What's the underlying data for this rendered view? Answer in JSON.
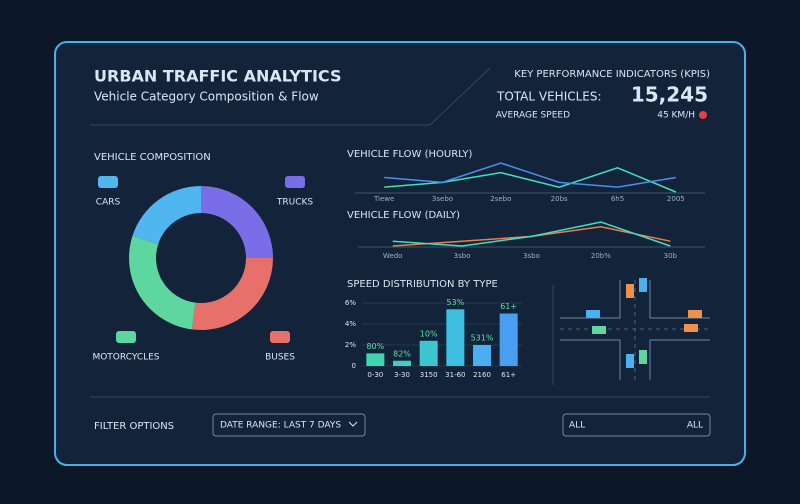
{
  "header": {
    "title": "URBAN TRAFFIC ANALYTICS",
    "subtitle": "Vehicle Category Composition & Flow"
  },
  "kpis": {
    "title": "KEY PERFORMANCE INDICATORS (KPIS)",
    "total_label": "TOTAL VEHICLES:",
    "total_value": "15,245",
    "speed_label": "AVERAGE SPEED",
    "speed_value": "45 KM/H"
  },
  "filters": {
    "title": "FILTER OPTIONS",
    "date_range": "DATE RANGE: LAST 7 DAYS",
    "left": "ALL",
    "right": "ALL"
  },
  "chart_data": [
    {
      "type": "pie",
      "title": "VEHICLE COMPOSITION",
      "categories": [
        "TRUCKS",
        "BUSES",
        "MOTORCYCLES",
        "CARS"
      ],
      "values": [
        25,
        27,
        28,
        20
      ],
      "colors": [
        "#7a6ee8",
        "#e8706a",
        "#5ed6a0",
        "#4fb6f0"
      ]
    },
    {
      "type": "line",
      "title": "VEHICLE FLOW (HOURLY)",
      "categories": [
        "Tiewe",
        "3sebo",
        "2sebo",
        "20bs",
        "6h5",
        "2005"
      ],
      "series": [
        {
          "name": null,
          "color": "#3ee0c0",
          "values": [
            4,
            5,
            7,
            4,
            8,
            3
          ]
        },
        {
          "name": null,
          "color": "#4a90f0",
          "values": [
            6,
            5,
            9,
            5,
            4,
            6
          ]
        }
      ]
    },
    {
      "type": "line",
      "title": "VEHICLE FLOW (DAILY)",
      "categories": [
        "Wedo",
        "3sbo",
        "3sbo",
        "20b%",
        "30b"
      ],
      "series": [
        {
          "name": null,
          "color": "#f07a4a",
          "values": [
            3,
            4,
            5,
            7,
            4
          ]
        },
        {
          "name": null,
          "color": "#3ee0c0",
          "values": [
            4,
            3,
            5,
            8,
            3
          ]
        }
      ]
    },
    {
      "type": "bar",
      "title": "SPEED DISTRIBUTION BY TYPE",
      "categories": [
        "0-30",
        "3-30",
        "3150",
        "31-60",
        "2160",
        "61+"
      ],
      "values": [
        1.2,
        0.5,
        2.4,
        5.4,
        2.0,
        5.0
      ],
      "colors": [
        "#3ed6b0",
        "#3ecfc0",
        "#3ec6d0",
        "#3ebfe0",
        "#4aaef0",
        "#4a9ef0"
      ],
      "ylim": [
        0,
        6
      ],
      "yticks": [
        0,
        {
          "value": 2,
          "label": "2%"
        },
        {
          "value": 4,
          "label": "4%"
        },
        {
          "value": 6,
          "label": "6%"
        }
      ],
      "annotations": [
        "80%",
        "82%",
        "10%",
        "53%",
        "531%",
        "61+"
      ]
    }
  ]
}
